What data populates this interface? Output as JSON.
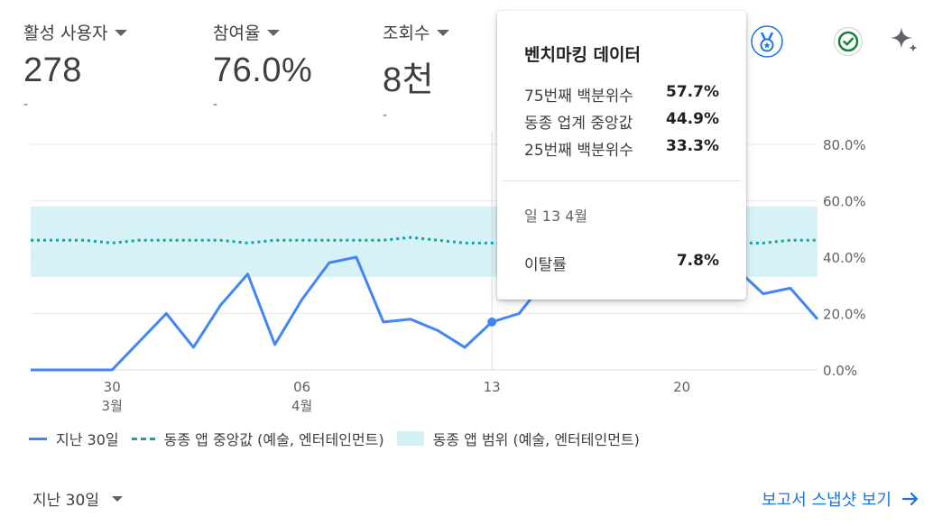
{
  "metrics": [
    {
      "label": "활성 사용자",
      "value": "278",
      "delta": "-"
    },
    {
      "label": "참여율",
      "value": "76.0%",
      "delta": "-"
    },
    {
      "label": "조회수",
      "value": "8천",
      "delta": "-"
    }
  ],
  "tooltip": {
    "title": "벤치마킹 데이터",
    "rows": [
      {
        "label": "75번째 백분위수",
        "value": "57.7%"
      },
      {
        "label": "동종 업계 중앙값",
        "value": "44.9%"
      },
      {
        "label": "25번째 백분위수",
        "value": "33.3%"
      }
    ],
    "date": "일 13 4월",
    "metric_label": "이탈률",
    "metric_value": "7.8%"
  },
  "legend": {
    "line": "지난 30일",
    "median": "동종 앱 중앙값 (예술, 엔터테인먼트)",
    "band": "동종 앱 범위 (예술, 엔터테인먼트)"
  },
  "footer": {
    "range_label": "지난 30일",
    "link_label": "보고서 스냅샷 보기"
  },
  "icons": [
    "medal-icon",
    "check-circle-icon",
    "sparkle-icon",
    "arrow-right-icon"
  ],
  "colors": {
    "line": "#4285f4",
    "median": "#12a4a5",
    "band": "#d3f1f5",
    "link": "#1a73e8",
    "check": "#188038"
  },
  "chart_data": {
    "type": "line",
    "ylim": [
      0,
      80
    ],
    "yticks": [
      "0.0%",
      "20.0%",
      "40.0%",
      "60.0%",
      "80.0%"
    ],
    "xticks": [
      {
        "day": 3,
        "top": "30",
        "bottom": "3월"
      },
      {
        "day": 10,
        "top": "06",
        "bottom": "4월"
      },
      {
        "day": 17,
        "top": "13",
        "bottom": ""
      },
      {
        "day": 24,
        "top": "20",
        "bottom": ""
      }
    ],
    "series": [
      {
        "name": "지난 30일",
        "values": [
          0,
          0,
          0,
          0,
          10,
          20,
          8,
          23,
          34,
          9,
          25,
          38,
          40,
          17,
          18,
          14,
          8,
          17,
          20,
          32,
          31,
          26,
          30,
          38,
          32,
          33,
          36,
          27,
          29,
          18
        ]
      }
    ],
    "median": [
      46,
      46,
      46,
      45,
      46,
      46,
      46,
      46,
      45,
      46,
      46,
      46,
      46,
      46,
      47,
      46,
      45,
      45,
      45,
      45,
      45,
      45,
      45,
      45,
      45,
      45,
      45,
      45,
      46,
      46
    ],
    "band": {
      "low": 33,
      "high": 58
    },
    "highlight_day": 17
  }
}
